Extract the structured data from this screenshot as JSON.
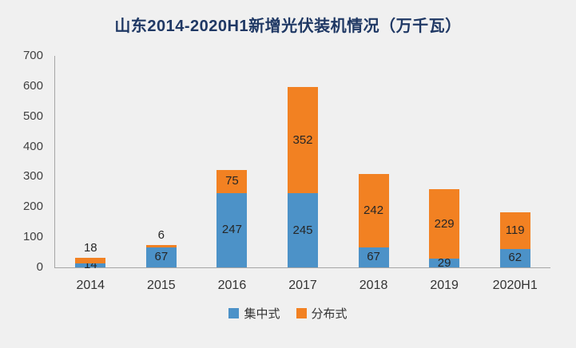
{
  "chart_data": {
    "type": "bar",
    "stacked": true,
    "title": "山东2014-2020H1新增光伏装机情况（万千瓦）",
    "categories": [
      "2014",
      "2015",
      "2016",
      "2017",
      "2018",
      "2019",
      "2020H1"
    ],
    "series": [
      {
        "name": "集中式",
        "key": "centralized",
        "color": "#4c92c8",
        "values": [
          14,
          67,
          247,
          245,
          67,
          29,
          62
        ]
      },
      {
        "name": "分布式",
        "key": "distributed",
        "color": "#f28122",
        "values": [
          18,
          6,
          75,
          352,
          242,
          229,
          119
        ]
      }
    ],
    "xlabel": "",
    "ylabel": "",
    "ylim": [
      0,
      700
    ],
    "yticks": [
      0,
      100,
      200,
      300,
      400,
      500,
      600,
      700
    ],
    "grid": false,
    "legend_position": "bottom",
    "background_color": "#f0f0f0",
    "title_color": "#1f3864"
  }
}
